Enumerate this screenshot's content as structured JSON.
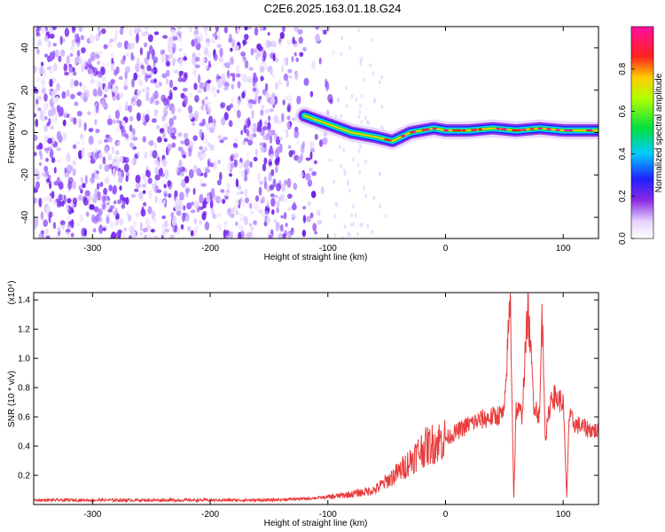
{
  "title": "C2E6.2025.163.01.18.G24",
  "colors": {
    "snr_line": "#e83a3a"
  },
  "chart_data": [
    {
      "type": "heatmap",
      "xlabel": "Height of straight line (km)",
      "ylabel": "Frequency (Hz)",
      "xlim": [
        -350,
        130
      ],
      "ylim": [
        -50,
        50
      ],
      "xticks": [
        -300,
        -200,
        -100,
        0,
        100
      ],
      "yticks": [
        -40,
        -20,
        0,
        20,
        40
      ],
      "colorbar": {
        "label": "Normalized spectral amplitude",
        "ticks": [
          "0.0",
          "0.2",
          "0.4",
          "0.6",
          "0.8"
        ],
        "colormap": "white-purple-blue-cyan-green-yellow-red-magenta",
        "range": [
          0,
          1
        ]
      },
      "noise_region_x": [
        -350,
        -95
      ],
      "ridge": {
        "x": [
          -120,
          -100,
          -80,
          -60,
          -45,
          -30,
          -10,
          0,
          20,
          40,
          60,
          80,
          100,
          130
        ],
        "frequency": [
          8,
          4,
          0,
          -2,
          -4,
          0,
          2,
          1,
          1,
          2,
          1,
          2,
          1,
          1
        ]
      }
    },
    {
      "type": "line",
      "xlabel": "Height of straight line (km)",
      "ylabel": "SNR (10 * v/v)",
      "scale_label": "(x10⁴)",
      "xlim": [
        -350,
        130
      ],
      "ylim": [
        0,
        1.45
      ],
      "xticks": [
        -300,
        -200,
        -100,
        0,
        100
      ],
      "yticks": [
        "0.2",
        "0.4",
        "0.6",
        "0.8",
        "1.0",
        "1.2",
        "1.4"
      ],
      "series": [
        {
          "x": [
            -350,
            -250,
            -150,
            -120,
            -100,
            -80,
            -60,
            -50,
            -40,
            -30,
            -20,
            -10,
            0,
            10,
            20,
            30,
            40,
            50,
            55,
            58,
            60,
            65,
            70,
            75,
            80,
            82,
            85,
            90,
            95,
            100,
            103,
            105,
            110,
            120,
            130
          ],
          "values": [
            0.03,
            0.03,
            0.03,
            0.04,
            0.05,
            0.07,
            0.1,
            0.16,
            0.22,
            0.3,
            0.38,
            0.42,
            0.45,
            0.5,
            0.55,
            0.58,
            0.6,
            0.62,
            1.44,
            0.05,
            0.65,
            0.62,
            1.35,
            0.7,
            0.6,
            1.32,
            0.45,
            0.75,
            0.72,
            0.7,
            0.05,
            0.6,
            0.55,
            0.52,
            0.5
          ]
        }
      ]
    }
  ]
}
